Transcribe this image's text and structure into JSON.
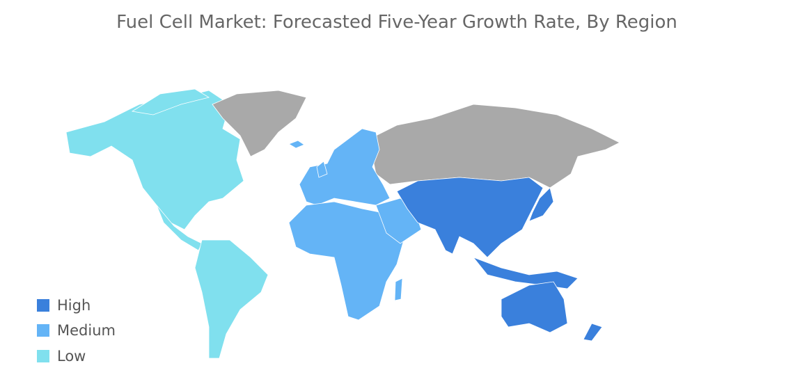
{
  "title": "Fuel Cell Market: Forecasted Five-Year Growth Rate, By Region",
  "legend": [
    {
      "label": "High",
      "color": "#3a80dc"
    },
    {
      "label": "Medium",
      "color": "#64b4f6"
    },
    {
      "label": "Low",
      "color": "#80e0ee"
    }
  ],
  "no_data_color": "#a9a9a9"
}
